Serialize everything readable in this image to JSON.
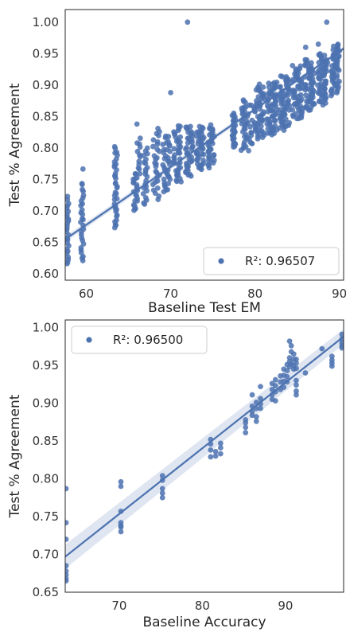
{
  "chart_data": [
    {
      "type": "scatter",
      "xlabel": "Baseline Test EM",
      "ylabel": "Test % Agreement",
      "xlim": [
        57.5,
        90.5
      ],
      "ylim": [
        0.59,
        1.02
      ],
      "xticks": [
        60,
        70,
        80,
        90
      ],
      "yticks": [
        0.6,
        0.65,
        0.7,
        0.75,
        0.8,
        0.85,
        0.9,
        0.95,
        1.0
      ],
      "ytick_labels": [
        "0.60",
        "0.65",
        "0.70",
        "0.75",
        "0.80",
        "0.85",
        "0.90",
        "0.95",
        "1.00"
      ],
      "legend": {
        "label": "R²: 0.96507",
        "placement": "lower-right"
      },
      "regression": {
        "x": [
          57.5,
          90.5
        ],
        "y": [
          0.655,
          0.958
        ],
        "band": 0.003
      },
      "point_color": "#4c72b0",
      "clusters": [
        {
          "x": 57.8,
          "y": [
            0.615,
            0.722
          ],
          "n": 26,
          "w": 0.3
        },
        {
          "x": 59.5,
          "y": [
            0.62,
            0.745
          ],
          "n": 28,
          "w": 0.35
        },
        {
          "x": 59.6,
          "y": [
            0.765,
            0.768
          ],
          "n": 1,
          "w": 0
        },
        {
          "x": 63.5,
          "y": [
            0.672,
            0.802
          ],
          "n": 36,
          "w": 0.35
        },
        {
          "x": 65.8,
          "y": [
            0.7,
            0.76
          ],
          "n": 22,
          "w": 0.5
        },
        {
          "x": 66.2,
          "y": [
            0.76,
            0.815
          ],
          "n": 12,
          "w": 0.4
        },
        {
          "x": 67.0,
          "y": [
            0.71,
            0.8
          ],
          "n": 22,
          "w": 0.5
        },
        {
          "x": 68.3,
          "y": [
            0.72,
            0.83
          ],
          "n": 28,
          "w": 0.8
        },
        {
          "x": 69.5,
          "y": [
            0.73,
            0.82
          ],
          "n": 35,
          "w": 0.9
        },
        {
          "x": 70.8,
          "y": [
            0.745,
            0.835
          ],
          "n": 40,
          "w": 0.9
        },
        {
          "x": 72.2,
          "y": [
            0.755,
            0.835
          ],
          "n": 40,
          "w": 0.9
        },
        {
          "x": 73.5,
          "y": [
            0.765,
            0.835
          ],
          "n": 40,
          "w": 0.9
        },
        {
          "x": 74.8,
          "y": [
            0.77,
            0.835
          ],
          "n": 34,
          "w": 0.8
        },
        {
          "x": 77.5,
          "y": [
            0.8,
            0.855
          ],
          "n": 28,
          "w": 0.4
        },
        {
          "x": 79.0,
          "y": [
            0.795,
            0.875
          ],
          "n": 45,
          "w": 1.3
        },
        {
          "x": 80.5,
          "y": [
            0.815,
            0.9
          ],
          "n": 55,
          "w": 1.2
        },
        {
          "x": 82.0,
          "y": [
            0.82,
            0.905
          ],
          "n": 60,
          "w": 1.2
        },
        {
          "x": 83.5,
          "y": [
            0.83,
            0.915
          ],
          "n": 60,
          "w": 1.2
        },
        {
          "x": 85.0,
          "y": [
            0.845,
            0.93
          ],
          "n": 60,
          "w": 1.2
        },
        {
          "x": 86.5,
          "y": [
            0.86,
            0.94
          ],
          "n": 60,
          "w": 1.2
        },
        {
          "x": 88.0,
          "y": [
            0.87,
            0.95
          ],
          "n": 60,
          "w": 1.2
        },
        {
          "x": 89.5,
          "y": [
            0.885,
            0.965
          ],
          "n": 55,
          "w": 1.0
        }
      ],
      "outliers": [
        [
          72.0,
          1.0
        ],
        [
          88.5,
          1.0
        ],
        [
          70.0,
          0.888
        ],
        [
          66.0,
          0.838
        ],
        [
          86.0,
          0.96
        ],
        [
          87.5,
          0.965
        ]
      ]
    },
    {
      "type": "scatter",
      "xlabel": "Baseline Accuracy",
      "ylabel": "Test % Agreement",
      "xlim": [
        63.5,
        97.0
      ],
      "ylim": [
        0.65,
        1.01
      ],
      "xticks": [
        70,
        80,
        90
      ],
      "yticks": [
        0.65,
        0.7,
        0.75,
        0.8,
        0.85,
        0.9,
        0.95,
        1.0
      ],
      "ytick_labels": [
        "0.65",
        "0.70",
        "0.75",
        "0.80",
        "0.85",
        "0.90",
        "0.95",
        "1.00"
      ],
      "legend": {
        "label": "R²: 0.96500",
        "placement": "upper-left"
      },
      "regression": {
        "x": [
          63.5,
          97.0
        ],
        "y": [
          0.697,
          0.988
        ],
        "band": 0.01
      },
      "point_color": "#4c72b0",
      "points": [
        [
          63.6,
          0.787
        ],
        [
          63.6,
          0.742
        ],
        [
          63.6,
          0.72
        ],
        [
          63.6,
          0.685
        ],
        [
          63.6,
          0.678
        ],
        [
          63.6,
          0.673
        ],
        [
          63.6,
          0.668
        ],
        [
          63.6,
          0.665
        ],
        [
          70.2,
          0.796
        ],
        [
          70.2,
          0.79
        ],
        [
          70.2,
          0.757
        ],
        [
          70.2,
          0.742
        ],
        [
          70.2,
          0.738
        ],
        [
          70.2,
          0.736
        ],
        [
          70.2,
          0.73
        ],
        [
          75.2,
          0.804
        ],
        [
          75.2,
          0.798
        ],
        [
          75.2,
          0.787
        ],
        [
          75.2,
          0.781
        ],
        [
          75.2,
          0.775
        ],
        [
          81.0,
          0.852
        ],
        [
          81.0,
          0.846
        ],
        [
          81.0,
          0.838
        ],
        [
          81.0,
          0.829
        ],
        [
          81.6,
          0.836
        ],
        [
          81.6,
          0.83
        ],
        [
          82.2,
          0.847
        ],
        [
          82.2,
          0.841
        ],
        [
          82.2,
          0.833
        ],
        [
          85.2,
          0.878
        ],
        [
          85.2,
          0.874
        ],
        [
          85.2,
          0.868
        ],
        [
          85.2,
          0.861
        ],
        [
          86.0,
          0.911
        ],
        [
          86.0,
          0.896
        ],
        [
          86.0,
          0.889
        ],
        [
          86.0,
          0.884
        ],
        [
          86.5,
          0.901
        ],
        [
          86.5,
          0.893
        ],
        [
          86.5,
          0.882
        ],
        [
          86.5,
          0.876
        ],
        [
          87.0,
          0.922
        ],
        [
          87.0,
          0.906
        ],
        [
          87.0,
          0.899
        ],
        [
          87.0,
          0.893
        ],
        [
          88.4,
          0.926
        ],
        [
          88.4,
          0.918
        ],
        [
          88.4,
          0.911
        ],
        [
          88.4,
          0.905
        ],
        [
          88.8,
          0.931
        ],
        [
          88.8,
          0.923
        ],
        [
          88.8,
          0.915
        ],
        [
          88.8,
          0.903
        ],
        [
          89.4,
          0.936
        ],
        [
          89.4,
          0.928
        ],
        [
          89.4,
          0.918
        ],
        [
          89.8,
          0.945
        ],
        [
          89.8,
          0.937
        ],
        [
          89.8,
          0.929
        ],
        [
          89.8,
          0.921
        ],
        [
          90.2,
          0.951
        ],
        [
          90.2,
          0.943
        ],
        [
          90.2,
          0.935
        ],
        [
          90.2,
          0.928
        ],
        [
          90.5,
          0.982
        ],
        [
          90.5,
          0.96
        ],
        [
          90.5,
          0.955
        ],
        [
          90.5,
          0.948
        ],
        [
          90.7,
          0.976
        ],
        [
          90.7,
          0.968
        ],
        [
          90.7,
          0.952
        ],
        [
          91.0,
          0.965
        ],
        [
          91.0,
          0.958
        ],
        [
          91.0,
          0.95
        ],
        [
          91.0,
          0.945
        ],
        [
          91.3,
          0.958
        ],
        [
          91.3,
          0.953
        ],
        [
          91.3,
          0.946
        ],
        [
          91.3,
          0.93
        ],
        [
          91.3,
          0.924
        ],
        [
          91.3,
          0.916
        ],
        [
          91.3,
          0.911
        ],
        [
          92.4,
          0.94
        ],
        [
          94.4,
          0.972
        ],
        [
          95.6,
          0.962
        ],
        [
          95.6,
          0.957
        ],
        [
          95.6,
          0.953
        ],
        [
          95.6,
          0.949
        ],
        [
          96.8,
          0.991
        ],
        [
          96.8,
          0.985
        ],
        [
          96.8,
          0.98
        ],
        [
          96.8,
          0.976
        ],
        [
          96.8,
          0.973
        ]
      ]
    }
  ]
}
